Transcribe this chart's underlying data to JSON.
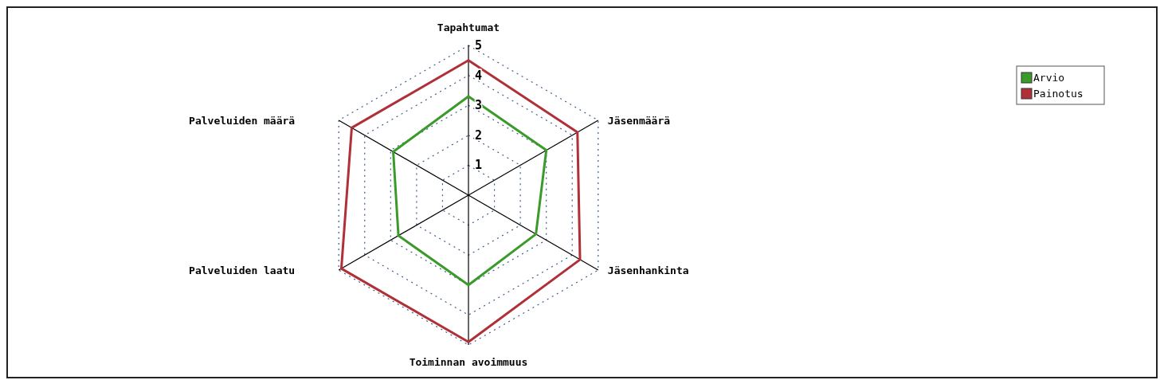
{
  "chart_data": {
    "type": "radar",
    "categories": [
      "Tapahtumat",
      "Jäsenmäärä",
      "Jäsenhankinta",
      "Toiminnan avoimmuus",
      "Palveluiden laatu",
      "Palveluiden määrä"
    ],
    "series": [
      {
        "name": "Arvio",
        "color": "#3a9a2a",
        "values": [
          3.3,
          3.0,
          2.6,
          3.0,
          2.7,
          2.9
        ]
      },
      {
        "name": "Painotus",
        "color": "#b03038",
        "values": [
          4.5,
          4.2,
          4.3,
          4.9,
          4.9,
          4.5
        ]
      }
    ],
    "ylim": [
      0,
      5
    ],
    "yticks": [
      1,
      2,
      3,
      4,
      5
    ],
    "grid": true,
    "legend": "top right"
  }
}
